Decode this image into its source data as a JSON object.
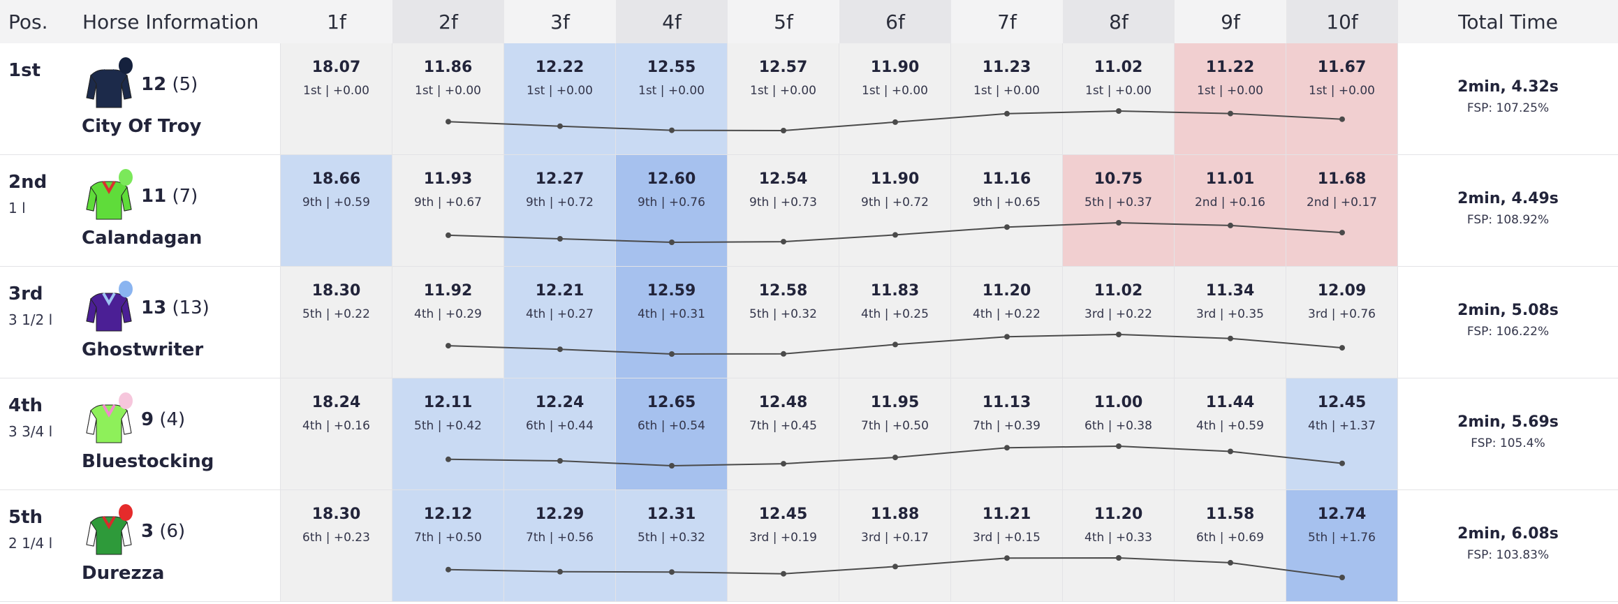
{
  "header": {
    "pos": "Pos.",
    "horse_info": "Horse Information",
    "furlongs": [
      "1f",
      "2f",
      "3f",
      "4f",
      "5f",
      "6f",
      "7f",
      "8f",
      "9f",
      "10f"
    ],
    "total": "Total Time"
  },
  "colors": {
    "neutral": "#f0f0f0",
    "light_blue": "#c9daf3",
    "blue": "#a6c1ee",
    "pink": "#f1cfd0",
    "header_alt": "#e6e6e9",
    "header_base": "#f3f3f4",
    "spark": "#4a4a4a"
  },
  "rows": [
    {
      "pos": "1st",
      "dist": "",
      "number": "12",
      "draw": "(5)",
      "name": "City Of Troy",
      "silk": {
        "icon": "jockey-silk-icon",
        "body": "#1c2a4a",
        "sleeve": "#1c2a4a",
        "cap": "#15213d",
        "accent": "#1c2a4a"
      },
      "total": "2min, 4.32s",
      "fsp": "FSP: 107.25%",
      "sections": [
        {
          "time": "18.07",
          "sub": "1st | +0.00",
          "hl": "neutral"
        },
        {
          "time": "11.86",
          "sub": "1st | +0.00",
          "hl": "neutral"
        },
        {
          "time": "12.22",
          "sub": "1st | +0.00",
          "hl": "light_blue"
        },
        {
          "time": "12.55",
          "sub": "1st | +0.00",
          "hl": "light_blue"
        },
        {
          "time": "12.57",
          "sub": "1st | +0.00",
          "hl": "neutral"
        },
        {
          "time": "11.90",
          "sub": "1st | +0.00",
          "hl": "neutral"
        },
        {
          "time": "11.23",
          "sub": "1st | +0.00",
          "hl": "neutral"
        },
        {
          "time": "11.02",
          "sub": "1st | +0.00",
          "hl": "neutral"
        },
        {
          "time": "11.22",
          "sub": "1st | +0.00",
          "hl": "pink"
        },
        {
          "time": "11.67",
          "sub": "1st | +0.00",
          "hl": "pink"
        }
      ]
    },
    {
      "pos": "2nd",
      "dist": "1 l",
      "number": "11",
      "draw": "(7)",
      "name": "Calandagan",
      "silk": {
        "icon": "jockey-silk-icon",
        "body": "#5fdc3a",
        "sleeve": "#5fdc3a",
        "cap": "#7be85a",
        "accent": "#d83030"
      },
      "total": "2min, 4.49s",
      "fsp": "FSP: 108.92%",
      "sections": [
        {
          "time": "18.66",
          "sub": "9th | +0.59",
          "hl": "light_blue"
        },
        {
          "time": "11.93",
          "sub": "9th | +0.67",
          "hl": "neutral"
        },
        {
          "time": "12.27",
          "sub": "9th | +0.72",
          "hl": "light_blue"
        },
        {
          "time": "12.60",
          "sub": "9th | +0.76",
          "hl": "blue"
        },
        {
          "time": "12.54",
          "sub": "9th | +0.73",
          "hl": "neutral"
        },
        {
          "time": "11.90",
          "sub": "9th | +0.72",
          "hl": "neutral"
        },
        {
          "time": "11.16",
          "sub": "9th | +0.65",
          "hl": "neutral"
        },
        {
          "time": "10.75",
          "sub": "5th | +0.37",
          "hl": "pink"
        },
        {
          "time": "11.01",
          "sub": "2nd | +0.16",
          "hl": "pink"
        },
        {
          "time": "11.68",
          "sub": "2nd | +0.17",
          "hl": "pink"
        }
      ]
    },
    {
      "pos": "3rd",
      "dist": "3 1/2 l",
      "number": "13",
      "draw": "(13)",
      "name": "Ghostwriter",
      "silk": {
        "icon": "jockey-silk-icon",
        "body": "#4b1f95",
        "sleeve": "#4b1f95",
        "cap": "#8ab4f0",
        "accent": "#9fc3f3"
      },
      "total": "2min, 5.08s",
      "fsp": "FSP: 106.22%",
      "sections": [
        {
          "time": "18.30",
          "sub": "5th | +0.22",
          "hl": "neutral"
        },
        {
          "time": "11.92",
          "sub": "4th | +0.29",
          "hl": "neutral"
        },
        {
          "time": "12.21",
          "sub": "4th | +0.27",
          "hl": "light_blue"
        },
        {
          "time": "12.59",
          "sub": "4th | +0.31",
          "hl": "blue"
        },
        {
          "time": "12.58",
          "sub": "5th | +0.32",
          "hl": "neutral"
        },
        {
          "time": "11.83",
          "sub": "4th | +0.25",
          "hl": "neutral"
        },
        {
          "time": "11.20",
          "sub": "4th | +0.22",
          "hl": "neutral"
        },
        {
          "time": "11.02",
          "sub": "3rd | +0.22",
          "hl": "neutral"
        },
        {
          "time": "11.34",
          "sub": "3rd | +0.35",
          "hl": "neutral"
        },
        {
          "time": "12.09",
          "sub": "3rd | +0.76",
          "hl": "neutral"
        }
      ]
    },
    {
      "pos": "4th",
      "dist": "3 3/4 l",
      "number": "9",
      "draw": "(4)",
      "name": "Bluestocking",
      "silk": {
        "icon": "jockey-silk-icon",
        "body": "#8ef05a",
        "sleeve": "#ffffff",
        "cap": "#f6c6dc",
        "accent": "#f08acb"
      },
      "total": "2min, 5.69s",
      "fsp": "FSP: 105.4%",
      "sections": [
        {
          "time": "18.24",
          "sub": "4th | +0.16",
          "hl": "neutral"
        },
        {
          "time": "12.11",
          "sub": "5th | +0.42",
          "hl": "light_blue"
        },
        {
          "time": "12.24",
          "sub": "6th | +0.44",
          "hl": "light_blue"
        },
        {
          "time": "12.65",
          "sub": "6th | +0.54",
          "hl": "blue"
        },
        {
          "time": "12.48",
          "sub": "7th | +0.45",
          "hl": "neutral"
        },
        {
          "time": "11.95",
          "sub": "7th | +0.50",
          "hl": "neutral"
        },
        {
          "time": "11.13",
          "sub": "7th | +0.39",
          "hl": "neutral"
        },
        {
          "time": "11.00",
          "sub": "6th | +0.38",
          "hl": "neutral"
        },
        {
          "time": "11.44",
          "sub": "4th | +0.59",
          "hl": "neutral"
        },
        {
          "time": "12.45",
          "sub": "4th | +1.37",
          "hl": "light_blue"
        }
      ]
    },
    {
      "pos": "5th",
      "dist": "2 1/4 l",
      "number": "3",
      "draw": "(6)",
      "name": "Durezza",
      "silk": {
        "icon": "jockey-silk-icon",
        "body": "#2e9a3a",
        "sleeve": "#ffffff",
        "cap": "#e52b2b",
        "accent": "#d62b2b"
      },
      "total": "2min, 6.08s",
      "fsp": "FSP: 103.83%",
      "sections": [
        {
          "time": "18.30",
          "sub": "6th | +0.23",
          "hl": "neutral"
        },
        {
          "time": "12.12",
          "sub": "7th | +0.50",
          "hl": "light_blue"
        },
        {
          "time": "12.29",
          "sub": "7th | +0.56",
          "hl": "light_blue"
        },
        {
          "time": "12.31",
          "sub": "5th | +0.32",
          "hl": "light_blue"
        },
        {
          "time": "12.45",
          "sub": "3rd | +0.19",
          "hl": "neutral"
        },
        {
          "time": "11.88",
          "sub": "3rd | +0.17",
          "hl": "neutral"
        },
        {
          "time": "11.21",
          "sub": "3rd | +0.15",
          "hl": "neutral"
        },
        {
          "time": "11.20",
          "sub": "4th | +0.33",
          "hl": "neutral"
        },
        {
          "time": "11.58",
          "sub": "6th | +0.69",
          "hl": "neutral"
        },
        {
          "time": "12.74",
          "sub": "5th | +1.76",
          "hl": "blue"
        }
      ]
    }
  ]
}
